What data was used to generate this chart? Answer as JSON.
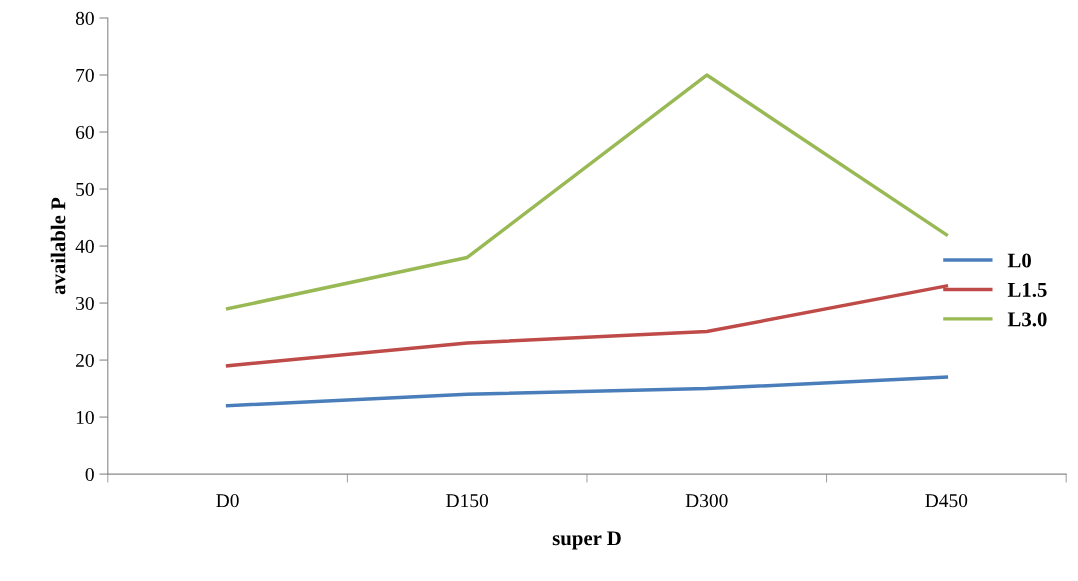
{
  "chart_data": {
    "type": "line",
    "xlabel": "super D",
    "ylabel": "available P",
    "categories": [
      "D0",
      "D150",
      "D300",
      "D450"
    ],
    "series": [
      {
        "name": "L0",
        "color": "#4a7ebb",
        "values": [
          12,
          14,
          15,
          17
        ]
      },
      {
        "name": "L1.5",
        "color": "#be4b48",
        "values": [
          19,
          23,
          25,
          33
        ]
      },
      {
        "name": "L3.0",
        "color": "#98b954",
        "values": [
          29,
          38,
          70,
          42
        ]
      }
    ],
    "ylim": [
      0,
      80
    ],
    "yticks": [
      0,
      10,
      20,
      30,
      40,
      50,
      60,
      70,
      80
    ],
    "grid": false,
    "legend": "right",
    "marker": "none",
    "line_style": "solid"
  }
}
